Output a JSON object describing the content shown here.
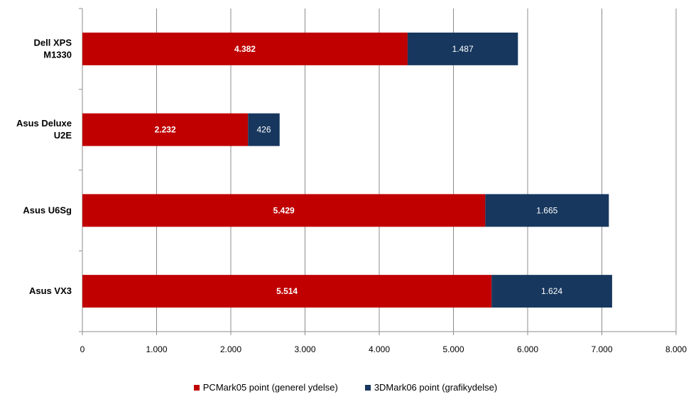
{
  "chart_data": {
    "type": "bar",
    "orientation": "horizontal",
    "stacked": true,
    "title": "",
    "xlabel": "",
    "ylabel": "",
    "categories": [
      [
        "Dell XPS",
        "M1330"
      ],
      [
        "Asus Deluxe",
        "U2E"
      ],
      [
        "Asus U6Sg"
      ],
      [
        "Asus VX3"
      ]
    ],
    "series": [
      {
        "name": "PCMark05 point (generel ydelse)",
        "color": "#C00000",
        "values": [
          4382,
          2232,
          5429,
          5514
        ],
        "labels": [
          "4.382",
          "2.232",
          "5.429",
          "5.514"
        ]
      },
      {
        "name": "3DMark06 point (grafikydelse)",
        "color": "#17375E",
        "values": [
          1487,
          426,
          1665,
          1624
        ],
        "labels": [
          "1.487",
          "426",
          "1.665",
          "1.624"
        ]
      }
    ],
    "xlim": [
      0,
      8000
    ],
    "xticks": [
      0,
      1000,
      2000,
      3000,
      4000,
      5000,
      6000,
      7000,
      8000
    ],
    "xtick_labels": [
      "0",
      "1.000",
      "2.000",
      "3.000",
      "4.000",
      "5.000",
      "6.000",
      "7.000",
      "8.000"
    ],
    "grid": true,
    "legend_position": "bottom"
  }
}
